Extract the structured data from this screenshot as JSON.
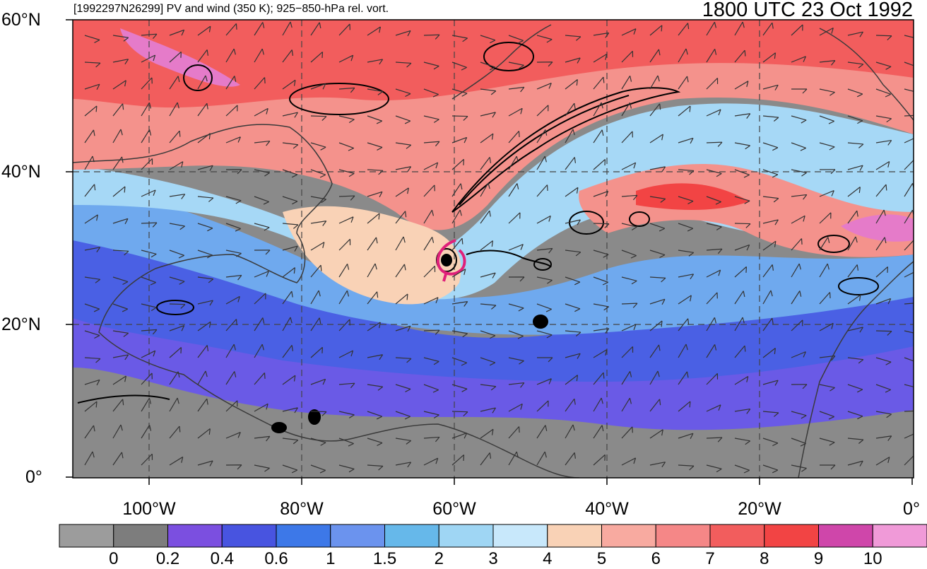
{
  "title_left": "[1992297N26299] PV and wind (350 K); 925−850-hPa rel. vort.",
  "title_right": "1800 UTC 23 Oct 1992",
  "lat_labels": [
    "60°N",
    "40°N",
    "20°N",
    "0°"
  ],
  "lon_labels": [
    "100°W",
    "80°W",
    "60°W",
    "40°W",
    "20°W",
    "0°"
  ],
  "colorbar": {
    "labels": [
      "0",
      "0.2",
      "0.4",
      "0.6",
      "1",
      "1.5",
      "2",
      "3",
      "4",
      "5",
      "6",
      "7",
      "8",
      "9",
      "10"
    ],
    "colors": [
      "#9c9c9c",
      "#7d7d7d",
      "#7b4fe0",
      "#4854e0",
      "#3d78e8",
      "#6b93ee",
      "#66b8ea",
      "#9fd6f4",
      "#c8e8fb",
      "#f9d2b6",
      "#f8aaa0",
      "#f58787",
      "#f25d5d",
      "#f24444",
      "#cf46aa",
      "#f09ad8"
    ]
  },
  "map_colors": {
    "ocean_tropics": "#7d7d7d",
    "low_pv": "#4854e0",
    "mid_pv": "#9fd6f4",
    "high_pv": "#f58787",
    "peak_pv": "#f24444",
    "vorticity_contour": "#000000",
    "storm_track": "#e0207a"
  },
  "storm_id": "1992297N26299"
}
